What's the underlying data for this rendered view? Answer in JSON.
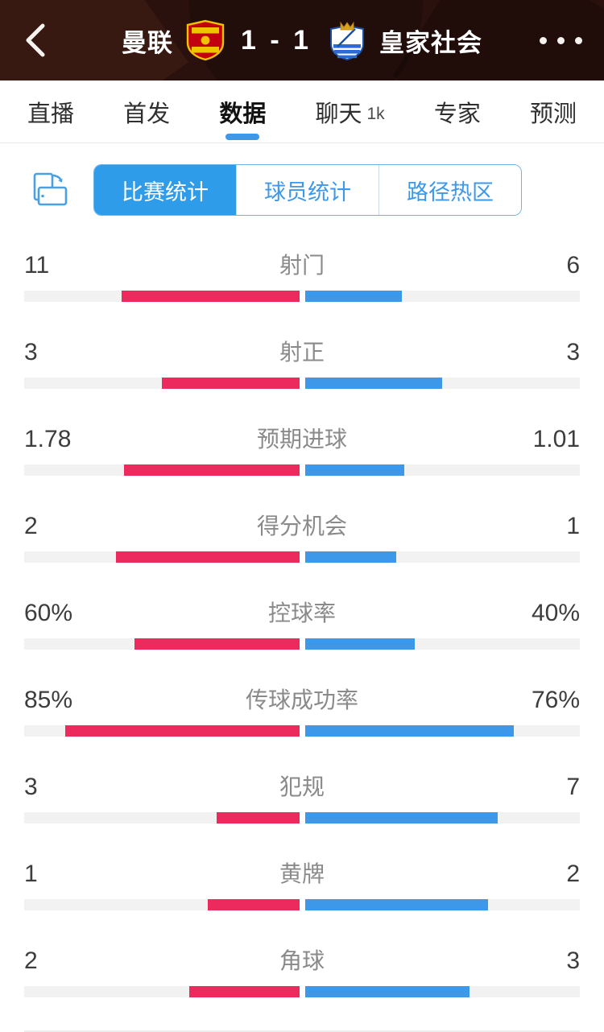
{
  "header": {
    "home_team": "曼联",
    "away_team": "皇家社会",
    "score": "1 - 1",
    "back_icon": "chevron-left",
    "more_icon": "ellipsis"
  },
  "tabs": [
    {
      "id": "live",
      "label": "直播",
      "active": false
    },
    {
      "id": "lineup",
      "label": "首发",
      "active": false
    },
    {
      "id": "data",
      "label": "数据",
      "active": true
    },
    {
      "id": "chat",
      "label": "聊天",
      "badge": "1k",
      "active": false
    },
    {
      "id": "expert",
      "label": "专家",
      "active": false
    },
    {
      "id": "predict",
      "label": "预测",
      "active": false
    }
  ],
  "subtabs": [
    {
      "id": "match-stats",
      "label": "比赛统计",
      "active": true
    },
    {
      "id": "player-stats",
      "label": "球员统计",
      "active": false
    },
    {
      "id": "heatmap",
      "label": "路径热区",
      "active": false
    }
  ],
  "chart_data": {
    "type": "bar",
    "title": "比赛统计",
    "legend": [
      "曼联",
      "皇家社会"
    ],
    "stats": [
      {
        "label": "射门",
        "home": "11",
        "away": "6",
        "home_frac": 0.647,
        "away_frac": 0.353
      },
      {
        "label": "射正",
        "home": "3",
        "away": "3",
        "home_frac": 0.5,
        "away_frac": 0.5
      },
      {
        "label": "预期进球",
        "home": "1.78",
        "away": "1.01",
        "home_frac": 0.638,
        "away_frac": 0.362
      },
      {
        "label": "得分机会",
        "home": "2",
        "away": "1",
        "home_frac": 0.667,
        "away_frac": 0.333
      },
      {
        "label": "控球率",
        "home": "60%",
        "away": "40%",
        "home_frac": 0.6,
        "away_frac": 0.4
      },
      {
        "label": "传球成功率",
        "home": "85%",
        "away": "76%",
        "home_frac": 0.85,
        "away_frac": 0.76
      },
      {
        "label": "犯规",
        "home": "3",
        "away": "7",
        "home_frac": 0.3,
        "away_frac": 0.7
      },
      {
        "label": "黄牌",
        "home": "1",
        "away": "2",
        "home_frac": 0.333,
        "away_frac": 0.667
      },
      {
        "label": "角球",
        "home": "2",
        "away": "3",
        "home_frac": 0.4,
        "away_frac": 0.6
      }
    ]
  },
  "colors": {
    "home_bar": "#ec2a5e",
    "away_bar": "#3e98e9",
    "accent_blue": "#2f9cea",
    "header_bg": "#2b110d",
    "track": "#f2f2f3"
  }
}
